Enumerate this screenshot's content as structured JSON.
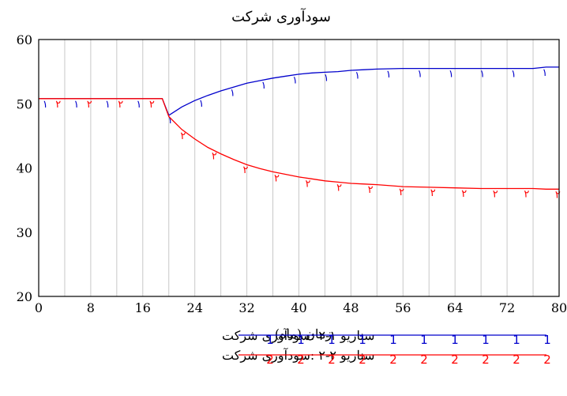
{
  "chart_data": {
    "type": "line",
    "title": "سودآوری شرکت",
    "xlabel": "زمان (ماه)",
    "ylabel": "",
    "xlim": [
      0,
      80
    ],
    "ylim": [
      20,
      60
    ],
    "x_ticks": [
      0,
      8,
      16,
      24,
      32,
      40,
      48,
      56,
      64,
      72,
      80
    ],
    "y_ticks": [
      20,
      30,
      40,
      50,
      60
    ],
    "grid": {
      "vertical": true,
      "horizontal": false
    },
    "legend_position": "bottom",
    "series": [
      {
        "name": "سناریو ۱-۲ :سودآوری شرکت",
        "marker": "۱",
        "legend_marker": "1",
        "color": "#0000cc",
        "x": [
          0,
          19,
          20,
          22,
          24,
          26,
          28,
          30,
          32,
          34,
          36,
          38,
          40,
          42,
          44,
          46,
          48,
          50,
          52,
          56,
          60,
          64,
          68,
          72,
          76,
          78,
          80
        ],
        "y": [
          50.8,
          50.8,
          48.2,
          49.5,
          50.5,
          51.3,
          52.0,
          52.6,
          53.2,
          53.6,
          54.0,
          54.3,
          54.6,
          54.8,
          54.9,
          55.0,
          55.2,
          55.3,
          55.4,
          55.5,
          55.5,
          55.5,
          55.5,
          55.5,
          55.5,
          55.7,
          55.7
        ]
      },
      {
        "name": "سناریو ۲-۲ :سودآوری شرکت",
        "marker": "۲",
        "legend_marker": "2",
        "color": "#ff0000",
        "x": [
          0,
          19,
          20,
          22,
          24,
          26,
          28,
          30,
          32,
          34,
          36,
          38,
          40,
          42,
          44,
          46,
          48,
          50,
          52,
          56,
          60,
          64,
          68,
          72,
          76,
          78,
          80
        ],
        "y": [
          50.8,
          50.8,
          48.0,
          46.0,
          44.5,
          43.2,
          42.2,
          41.3,
          40.5,
          39.9,
          39.4,
          39.0,
          38.6,
          38.3,
          38.0,
          37.8,
          37.6,
          37.5,
          37.4,
          37.1,
          37.0,
          36.9,
          36.8,
          36.8,
          36.8,
          36.7,
          36.7
        ]
      }
    ]
  }
}
